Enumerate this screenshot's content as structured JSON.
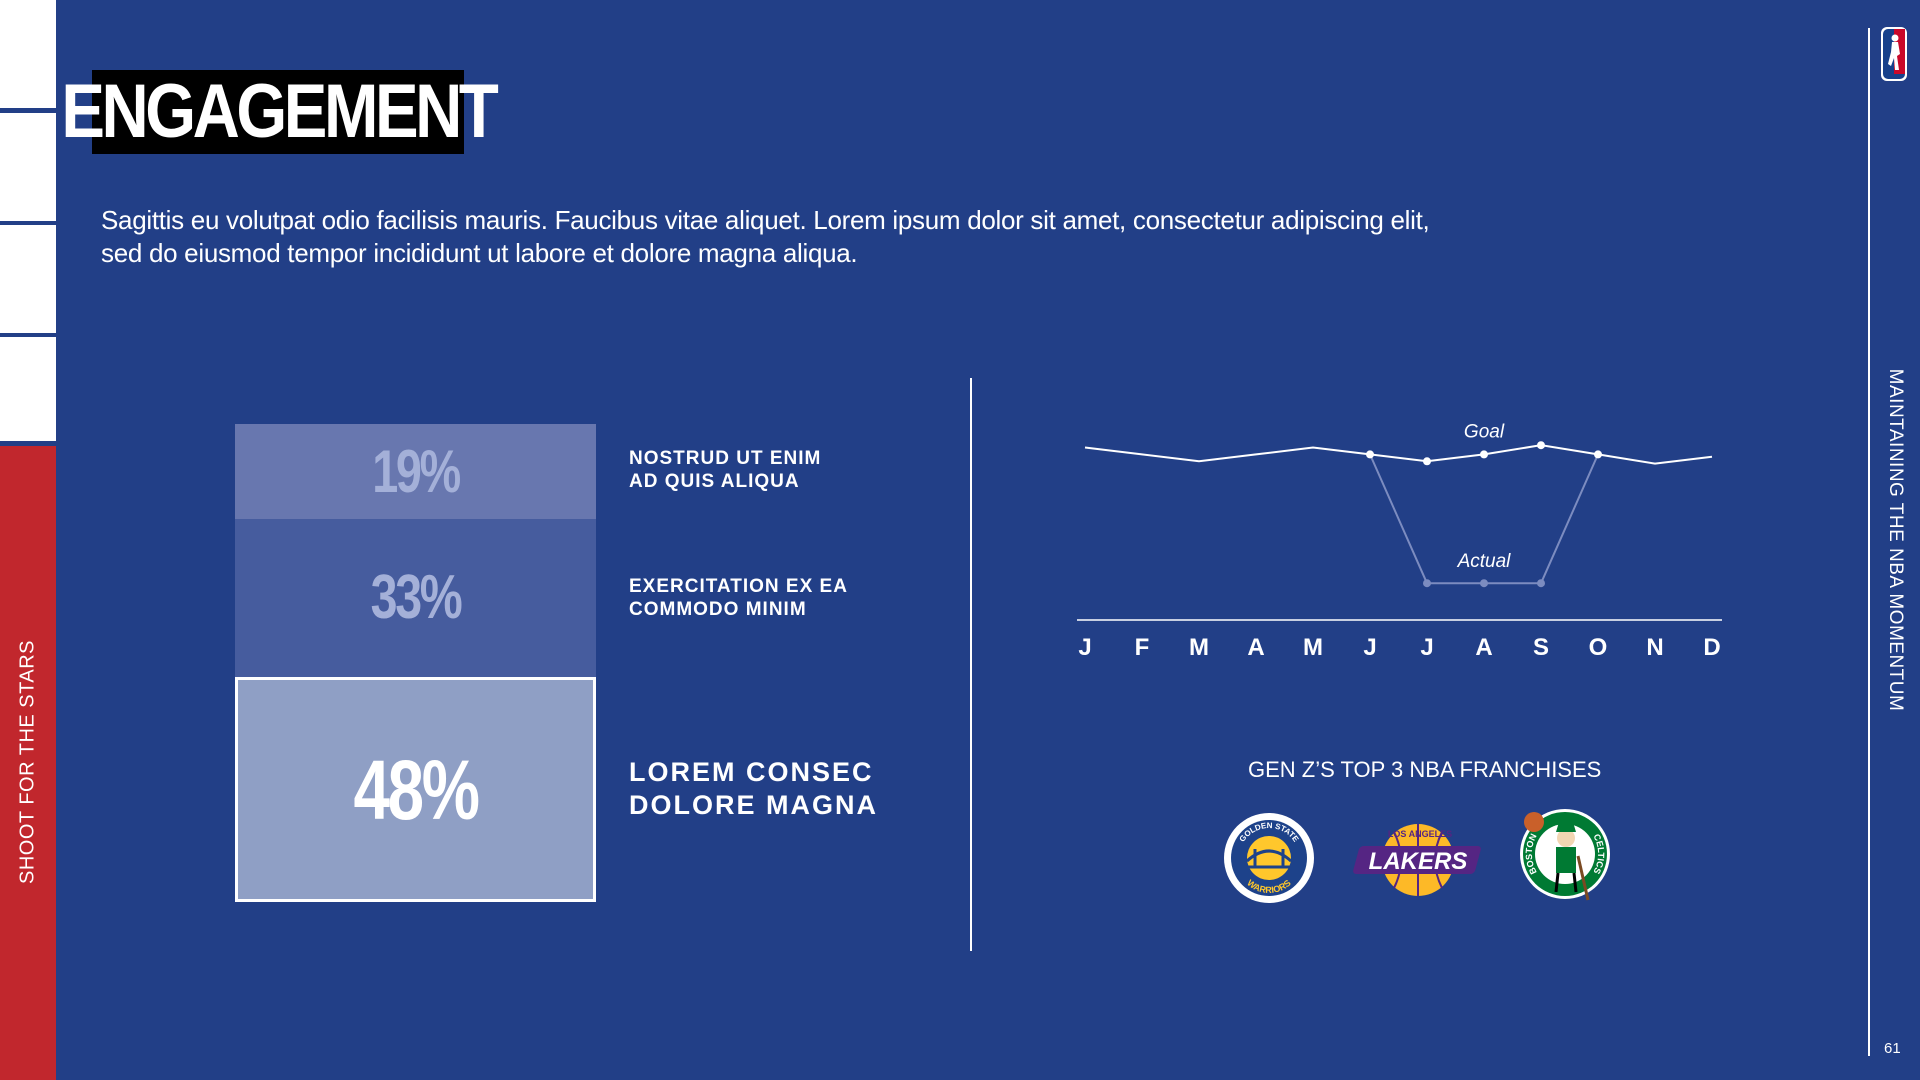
{
  "title": "ENGAGEMENT",
  "intro_line1": "Sagittis eu volutpat odio facilisis mauris. Faucibus vitae aliquet. Lorem ipsum dolor sit amet, consectetur adipiscing elit,",
  "intro_line2": "sed do eiusmod tempor incididunt ut labore et dolore magna aliqua.",
  "left_vertical": "SHOOT FOR THE STARS",
  "right_vertical": "MAINTAINING THE NBA MOMENTUM",
  "page_number": "61",
  "stack": [
    {
      "value": "19%",
      "label1": "NOSTRUD UT ENIM",
      "label2": "AD QUIS ALIQUA"
    },
    {
      "value": "33%",
      "label1": "EXERCITATION EX EA",
      "label2": "COMMODO MINIM"
    },
    {
      "value": "48%",
      "label1": "LOREM CONSEC",
      "label2": "DOLORE MAGNA"
    }
  ],
  "colors": {
    "background": "#223f87",
    "accent_red": "#c1272d",
    "box1": "#6877af",
    "box2": "#465c9e",
    "box3": "#8f9fc5"
  },
  "chart_data": {
    "type": "line",
    "categories": [
      "J",
      "F",
      "M",
      "A",
      "M",
      "J",
      "J",
      "A",
      "S",
      "O",
      "N",
      "D"
    ],
    "series": [
      {
        "name": "Goal",
        "values": [
          75,
          72,
          69,
          72,
          75,
          72,
          69,
          72,
          76,
          72,
          68,
          71
        ]
      },
      {
        "name": "Actual",
        "values": [
          null,
          null,
          null,
          null,
          null,
          72,
          16,
          16,
          16,
          72,
          null,
          null
        ]
      }
    ],
    "ylim": [
      0,
      100
    ],
    "title": "",
    "xlabel": "",
    "ylabel": ""
  },
  "franchises": {
    "title": "GEN Z’S TOP 3 NBA FRANCHISES",
    "teams": [
      {
        "icon": "warriors-logo-icon",
        "top_text": "GOLDEN STATE",
        "bottom_text": "WARRIORS"
      },
      {
        "icon": "lakers-logo-icon",
        "top_text": "LOS ANGELES",
        "main_text": "LAKERS"
      },
      {
        "icon": "celtics-logo-icon",
        "left_text": "BOSTON",
        "right_text": "CELTICS"
      }
    ]
  }
}
